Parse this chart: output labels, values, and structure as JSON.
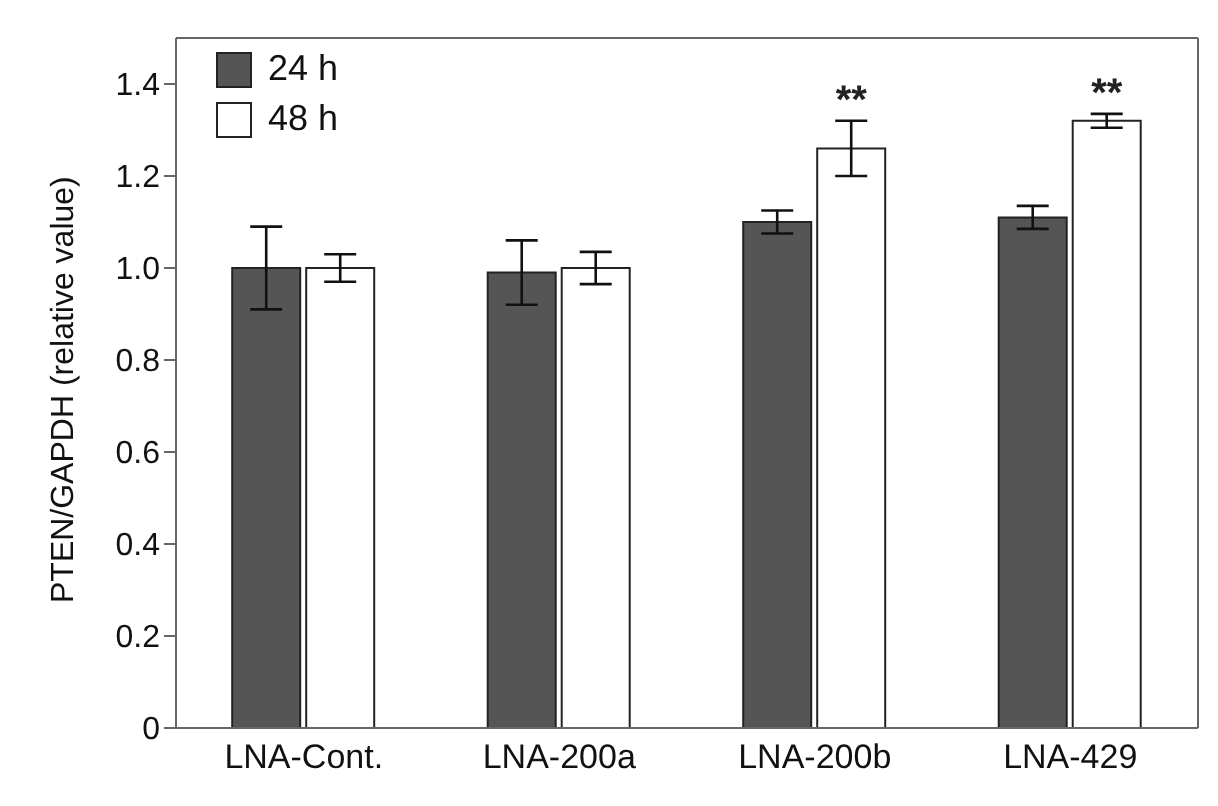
{
  "chart_data": {
    "type": "bar",
    "ylabel": "PTEN/GAPDH (relative value)",
    "categories": [
      "LNA-Cont.",
      "LNA-200a",
      "LNA-200b",
      "LNA-429"
    ],
    "series": [
      {
        "name": "24 h",
        "color": "#555555",
        "values": [
          1.0,
          0.99,
          1.1,
          1.11
        ],
        "errors": [
          0.09,
          0.07,
          0.025,
          0.025
        ]
      },
      {
        "name": "48 h",
        "color": "#ffffff",
        "values": [
          1.0,
          1.0,
          1.26,
          1.32
        ],
        "errors": [
          0.03,
          0.035,
          0.06,
          0.015
        ]
      }
    ],
    "ylim": [
      0,
      1.5
    ],
    "yticks": [
      0,
      {
        "value": 0.2,
        "label": "0.2"
      },
      {
        "value": 0.4,
        "label": "0.4"
      },
      {
        "value": 0.6,
        "label": "0.6"
      },
      {
        "value": 0.8,
        "label": "0.8"
      },
      {
        "value": 1.0,
        "label": "1.0"
      },
      {
        "value": 1.2,
        "label": "1.2"
      },
      {
        "value": 1.4,
        "label": "1.4"
      }
    ],
    "annotations": [
      {
        "text": "**",
        "x": "LNA-200b",
        "y": 1.26
      },
      {
        "text": "**",
        "x": "LNA-429",
        "y": 1.32
      }
    ],
    "legend": "top left",
    "grid": false
  }
}
